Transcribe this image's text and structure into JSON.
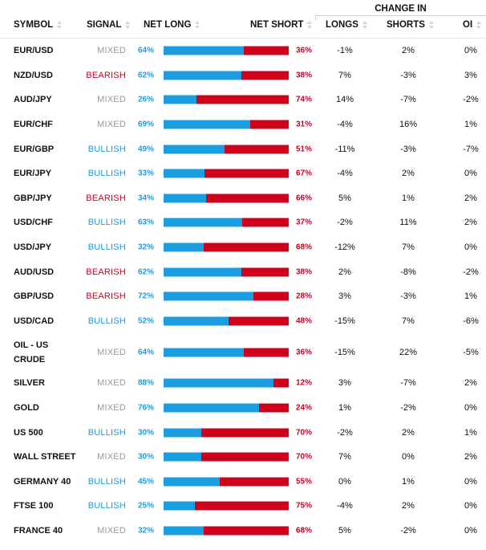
{
  "header": {
    "symbol": "SYMBOL",
    "signal": "SIGNAL",
    "net_long": "NET LONG",
    "net_short": "NET SHORT",
    "change_in": "CHANGE IN",
    "longs": "LONGS",
    "shorts": "SHORTS",
    "oi": "OI"
  },
  "colors": {
    "long": "#1b9de2",
    "short": "#d0021b",
    "mixed": "#9a9a9a"
  },
  "rows": [
    {
      "symbol": "EUR/USD",
      "signal": "MIXED",
      "net_long": "64%",
      "net_short": "36%",
      "long_pct": 64,
      "longs": "-1%",
      "shorts": "2%",
      "oi": "0%"
    },
    {
      "symbol": "NZD/USD",
      "signal": "BEARISH",
      "net_long": "62%",
      "net_short": "38%",
      "long_pct": 62,
      "longs": "7%",
      "shorts": "-3%",
      "oi": "3%"
    },
    {
      "symbol": "AUD/JPY",
      "signal": "MIXED",
      "net_long": "26%",
      "net_short": "74%",
      "long_pct": 26,
      "longs": "14%",
      "shorts": "-7%",
      "oi": "-2%"
    },
    {
      "symbol": "EUR/CHF",
      "signal": "MIXED",
      "net_long": "69%",
      "net_short": "31%",
      "long_pct": 69,
      "longs": "-4%",
      "shorts": "16%",
      "oi": "1%"
    },
    {
      "symbol": "EUR/GBP",
      "signal": "BULLISH",
      "net_long": "49%",
      "net_short": "51%",
      "long_pct": 49,
      "longs": "-11%",
      "shorts": "-3%",
      "oi": "-7%"
    },
    {
      "symbol": "EUR/JPY",
      "signal": "BULLISH",
      "net_long": "33%",
      "net_short": "67%",
      "long_pct": 33,
      "longs": "-4%",
      "shorts": "2%",
      "oi": "0%"
    },
    {
      "symbol": "GBP/JPY",
      "signal": "BEARISH",
      "net_long": "34%",
      "net_short": "66%",
      "long_pct": 34,
      "longs": "5%",
      "shorts": "1%",
      "oi": "2%"
    },
    {
      "symbol": "USD/CHF",
      "signal": "BULLISH",
      "net_long": "63%",
      "net_short": "37%",
      "long_pct": 63,
      "longs": "-2%",
      "shorts": "11%",
      "oi": "2%"
    },
    {
      "symbol": "USD/JPY",
      "signal": "BULLISH",
      "net_long": "32%",
      "net_short": "68%",
      "long_pct": 32,
      "longs": "-12%",
      "shorts": "7%",
      "oi": "0%"
    },
    {
      "symbol": "AUD/USD",
      "signal": "BEARISH",
      "net_long": "62%",
      "net_short": "38%",
      "long_pct": 62,
      "longs": "2%",
      "shorts": "-8%",
      "oi": "-2%"
    },
    {
      "symbol": "GBP/USD",
      "signal": "BEARISH",
      "net_long": "72%",
      "net_short": "28%",
      "long_pct": 72,
      "longs": "3%",
      "shorts": "-3%",
      "oi": "1%"
    },
    {
      "symbol": "USD/CAD",
      "signal": "BULLISH",
      "net_long": "52%",
      "net_short": "48%",
      "long_pct": 52,
      "longs": "-15%",
      "shorts": "7%",
      "oi": "-6%"
    },
    {
      "symbol": "OIL - US CRUDE",
      "signal": "MIXED",
      "net_long": "64%",
      "net_short": "36%",
      "long_pct": 64,
      "longs": "-15%",
      "shorts": "22%",
      "oi": "-5%"
    },
    {
      "symbol": "SILVER",
      "signal": "MIXED",
      "net_long": "88%",
      "net_short": "12%",
      "long_pct": 88,
      "longs": "3%",
      "shorts": "-7%",
      "oi": "2%"
    },
    {
      "symbol": "GOLD",
      "signal": "MIXED",
      "net_long": "76%",
      "net_short": "24%",
      "long_pct": 76,
      "longs": "1%",
      "shorts": "-2%",
      "oi": "0%"
    },
    {
      "symbol": "US 500",
      "signal": "BULLISH",
      "net_long": "30%",
      "net_short": "70%",
      "long_pct": 30,
      "longs": "-2%",
      "shorts": "2%",
      "oi": "1%"
    },
    {
      "symbol": "WALL STREET",
      "signal": "MIXED",
      "net_long": "30%",
      "net_short": "70%",
      "long_pct": 30,
      "longs": "7%",
      "shorts": "0%",
      "oi": "2%"
    },
    {
      "symbol": "GERMANY 40",
      "signal": "BULLISH",
      "net_long": "45%",
      "net_short": "55%",
      "long_pct": 45,
      "longs": "0%",
      "shorts": "1%",
      "oi": "0%"
    },
    {
      "symbol": "FTSE 100",
      "signal": "BULLISH",
      "net_long": "25%",
      "net_short": "75%",
      "long_pct": 25,
      "longs": "-4%",
      "shorts": "2%",
      "oi": "0%"
    },
    {
      "symbol": "FRANCE 40",
      "signal": "MIXED",
      "net_long": "32%",
      "net_short": "68%",
      "long_pct": 32,
      "longs": "5%",
      "shorts": "-2%",
      "oi": "0%"
    }
  ]
}
